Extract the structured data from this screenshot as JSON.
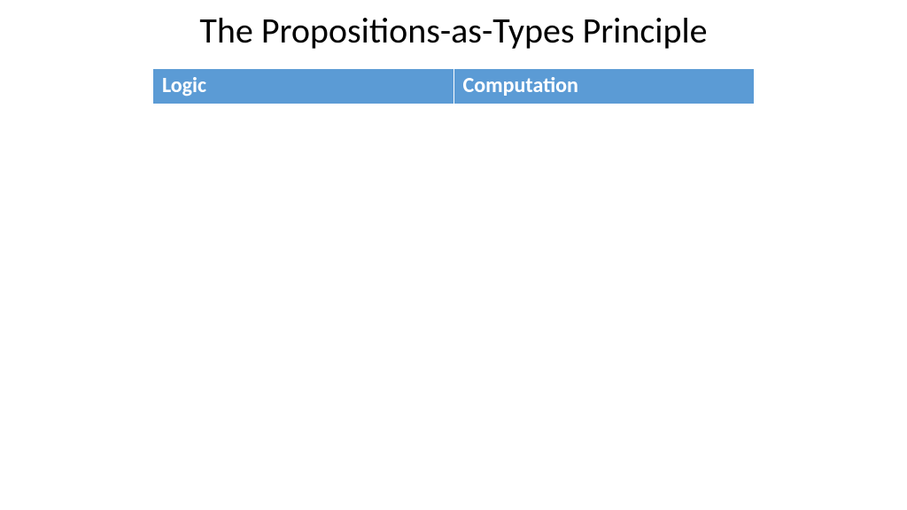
{
  "slide": {
    "title": "The Propositions-as-Types Principle",
    "title_fontsize": 40,
    "title_color": "#000000",
    "background_color": "#ffffff"
  },
  "table": {
    "type": "table",
    "header_bg": "#5b9bd5",
    "header_fg": "#ffffff",
    "header_fontsize": 24,
    "border_color": "#ffffff",
    "columns": [
      {
        "label": "Logic",
        "width_pct": 50
      },
      {
        "label": "Computation",
        "width_pct": 50
      }
    ],
    "rows": []
  }
}
